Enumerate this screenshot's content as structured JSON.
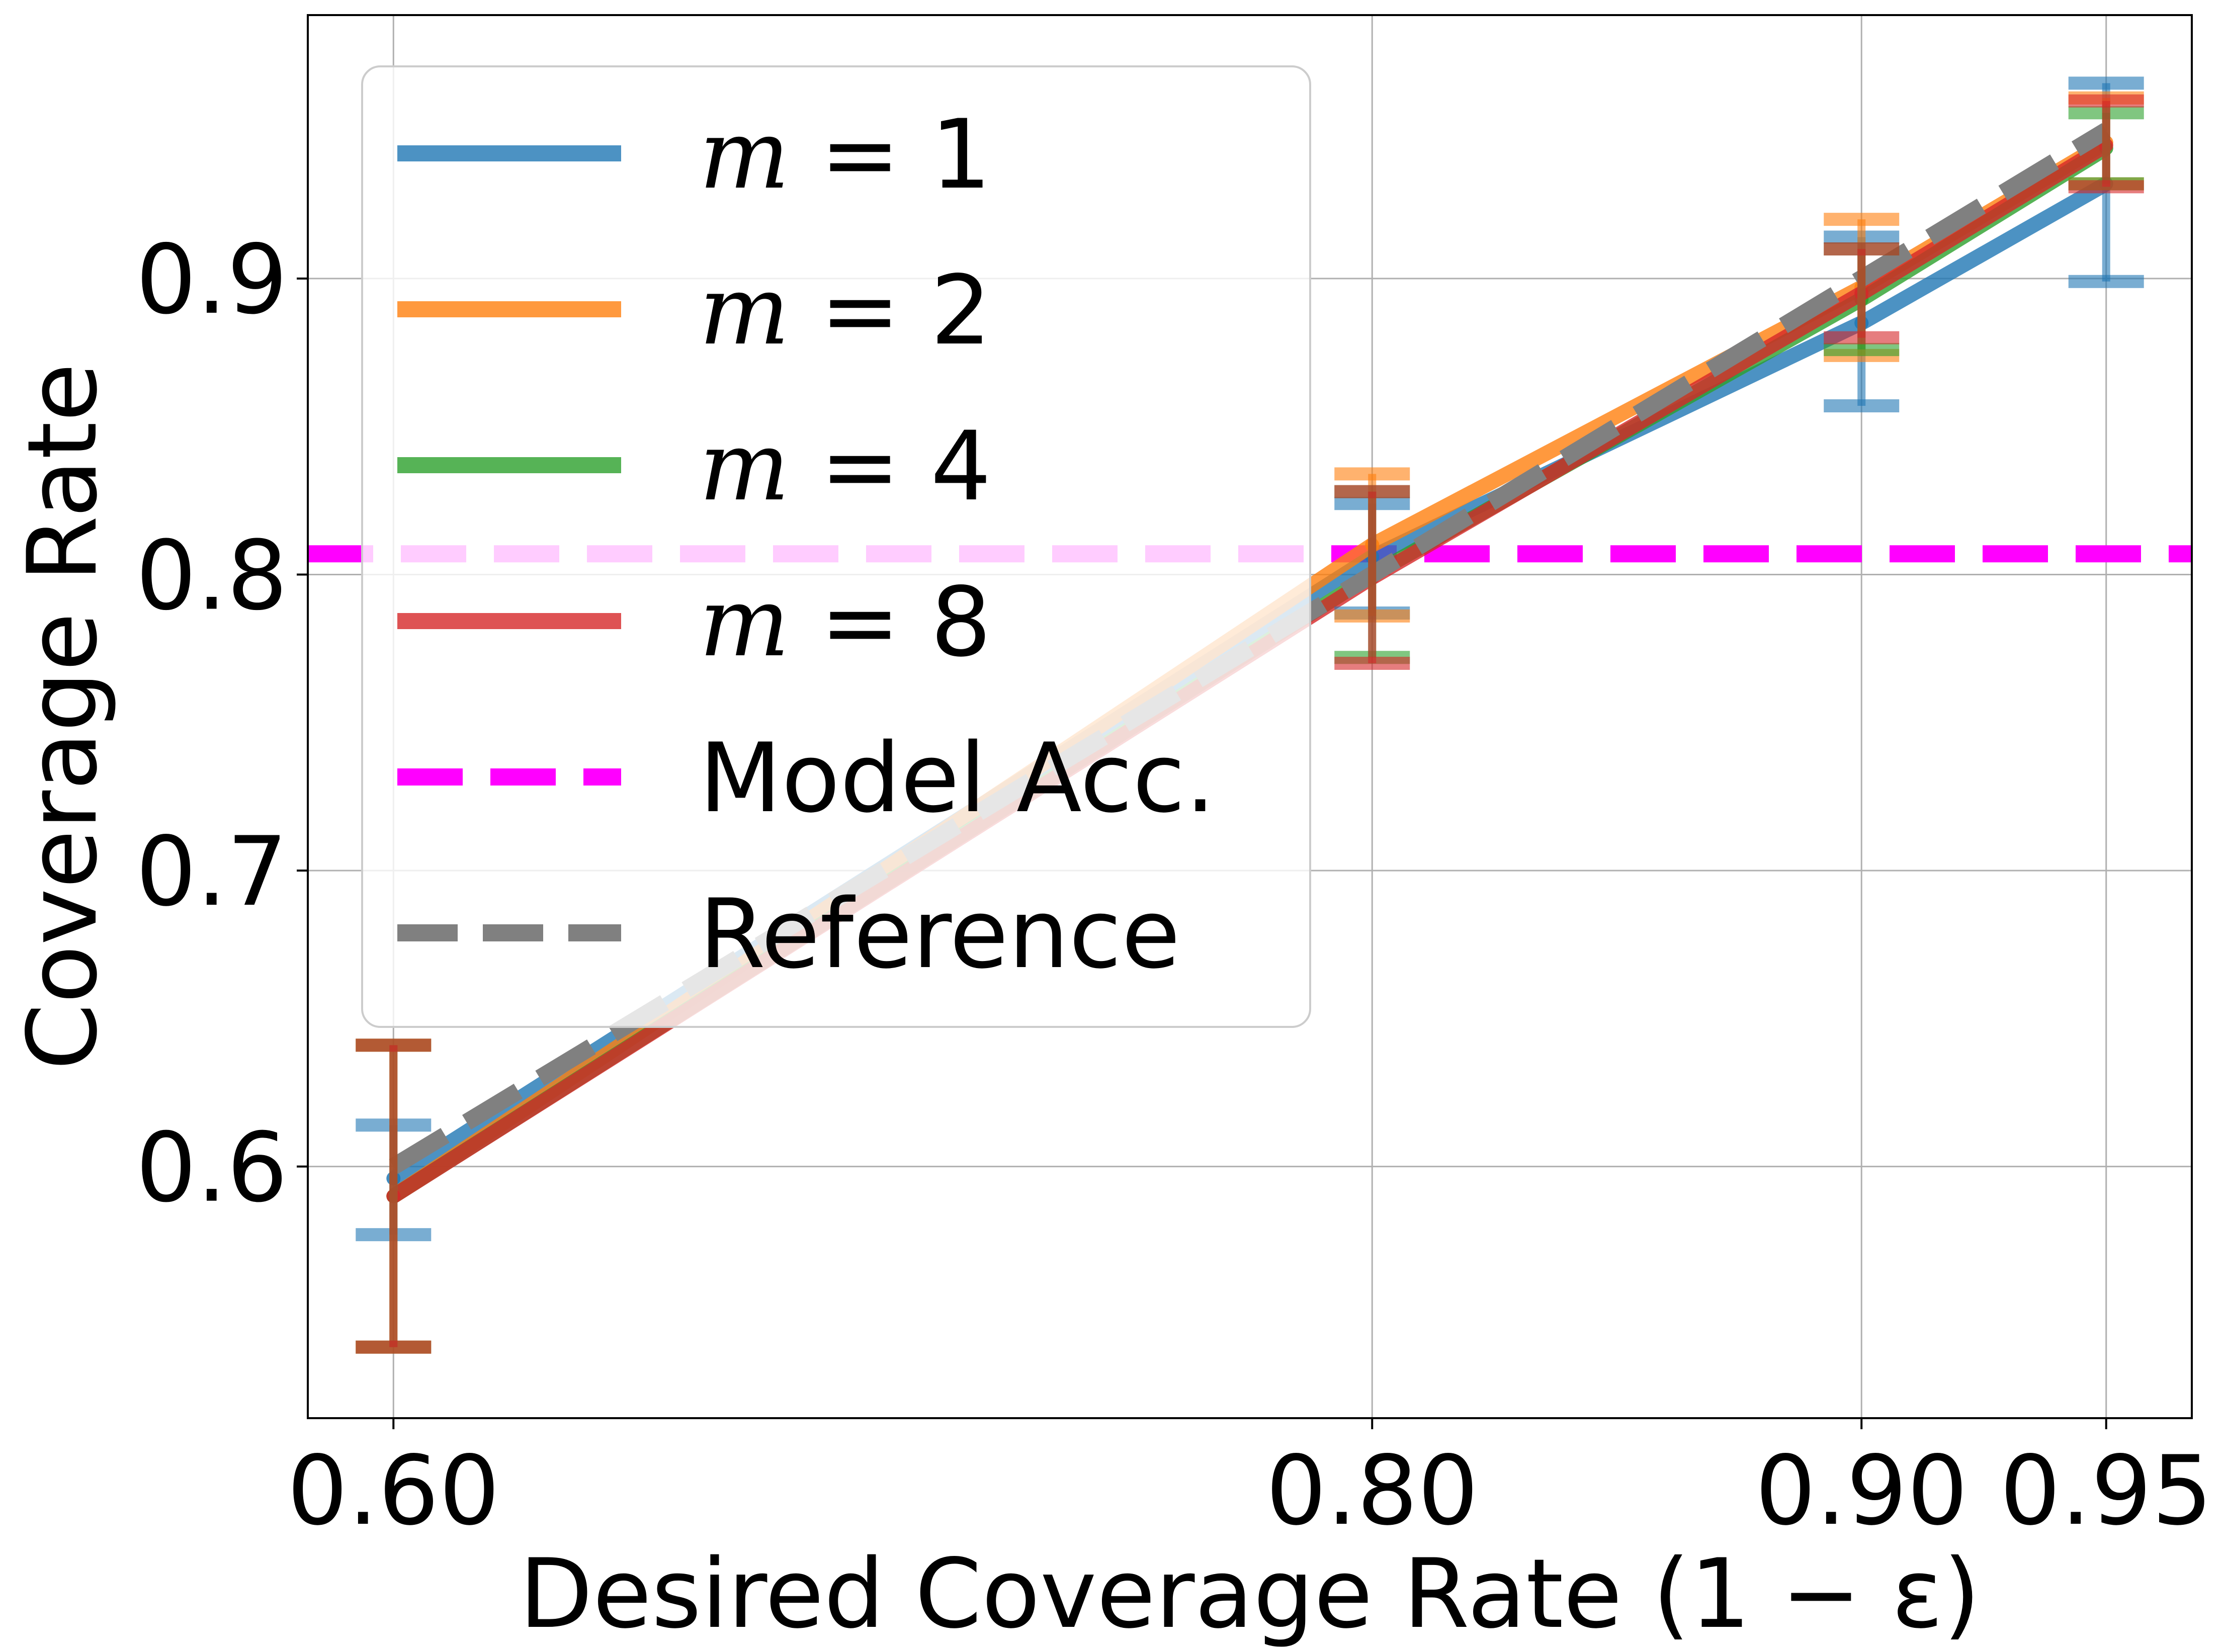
{
  "chart_data": {
    "type": "line",
    "title": "",
    "xlabel": "Desired Coverage Rate (1 − ε)",
    "ylabel": "Coverage Rate",
    "x": [
      0.6,
      0.8,
      0.9,
      0.95
    ],
    "x_tick_labels": [
      "0.60",
      "0.80",
      "0.90",
      "0.95"
    ],
    "y_ticks": [
      0.6,
      0.7,
      0.8,
      0.9
    ],
    "y_tick_labels": [
      "0.6",
      "0.7",
      "0.8",
      "0.9"
    ],
    "xlim": [
      0.5825,
      0.9675
    ],
    "ylim": [
      0.515,
      0.989
    ],
    "grid": true,
    "legend_placement": "upper-left",
    "series": [
      {
        "name": "m = 1",
        "legend_var": "m",
        "legend_val": "1",
        "color": "#1f77b4",
        "values": [
          0.596,
          0.806,
          0.885,
          0.932
        ],
        "err_low": [
          0.577,
          0.787,
          0.857,
          0.899
        ],
        "err_high": [
          0.614,
          0.824,
          0.914,
          0.966
        ]
      },
      {
        "name": "m = 2",
        "legend_var": "m",
        "legend_val": "2",
        "color": "#ff7f0e",
        "values": [
          0.59,
          0.81,
          0.897,
          0.946
        ],
        "err_low": [
          0.539,
          0.786,
          0.874,
          0.932
        ],
        "err_high": [
          0.641,
          0.834,
          0.92,
          0.961
        ]
      },
      {
        "name": "m = 4",
        "legend_var": "m",
        "legend_val": "4",
        "color": "#2ca02c",
        "values": [
          0.59,
          0.8,
          0.893,
          0.944
        ],
        "err_low": [
          0.539,
          0.772,
          0.876,
          0.932
        ],
        "err_high": [
          0.641,
          0.828,
          0.91,
          0.956
        ]
      },
      {
        "name": "m = 8",
        "legend_var": "m",
        "legend_val": "8",
        "color": "#d62728",
        "values": [
          0.59,
          0.799,
          0.895,
          0.945
        ],
        "err_low": [
          0.539,
          0.77,
          0.88,
          0.931
        ],
        "err_high": [
          0.641,
          0.828,
          0.91,
          0.96
        ]
      }
    ],
    "model_accuracy": {
      "name": "Model Acc.",
      "value": 0.807,
      "color": "#ff00ff"
    },
    "reference": {
      "name": "Reference",
      "color": "#808080",
      "x": [
        0.6,
        0.8,
        0.9,
        0.95
      ],
      "values": [
        0.6,
        0.8,
        0.9,
        0.95
      ]
    }
  }
}
